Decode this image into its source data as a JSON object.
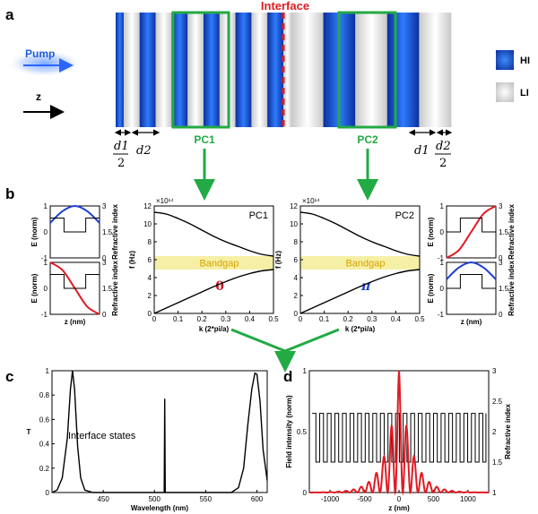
{
  "panels": {
    "a": "a",
    "b": "b",
    "c": "c",
    "d": "d"
  },
  "panel_a": {
    "interface_label": "Interface",
    "pump_label": "Pump",
    "z_label": "z",
    "pc1_label": "PC1",
    "pc2_label": "PC2",
    "legend": [
      {
        "label": "HI",
        "color": "#1a5ad8"
      },
      {
        "label": "LI",
        "color": "#cfcfcf"
      }
    ],
    "dims": {
      "d1_left": "d1",
      "two_left": "2",
      "d2_left": "d2",
      "d1_right": "d1",
      "d2_right": "d2",
      "two_right": "2"
    },
    "colors": {
      "hi": "#1a5ad8",
      "li": "#d9d9d9",
      "interface": "#e01b24",
      "pc_box": "#22aa44",
      "pump": "#2a66ff"
    }
  },
  "chart_data": [
    {
      "id": "b-pc1-band",
      "type": "line",
      "title": "PC1",
      "xlabel": "k (2*pi/a)",
      "ylabel": "f (Hz)",
      "multiplier": "×10¹⁴",
      "xlim": [
        0,
        0.5
      ],
      "ylim": [
        0,
        12
      ],
      "xticks": [
        "0",
        "0.1",
        "0.2",
        "0.3",
        "0.4",
        "0.5"
      ],
      "yticks": [
        "0",
        "2",
        "4",
        "6",
        "8",
        "10",
        "12"
      ],
      "bandgap_label": "Bandgap",
      "bandgap": [
        4.9,
        6.4
      ],
      "phase_label": "0",
      "series": [
        {
          "x": [
            0,
            0.05,
            0.1,
            0.15,
            0.2,
            0.25,
            0.3,
            0.35,
            0.4,
            0.45,
            0.5
          ],
          "y": [
            11.3,
            11.1,
            10.6,
            10.0,
            9.3,
            8.6,
            8.0,
            7.5,
            7.0,
            6.6,
            6.4
          ]
        },
        {
          "x": [
            0,
            0.05,
            0.1,
            0.15,
            0.2,
            0.25,
            0.3,
            0.35,
            0.4,
            0.45,
            0.5
          ],
          "y": [
            0,
            0.6,
            1.2,
            1.8,
            2.4,
            3.0,
            3.55,
            4.05,
            4.45,
            4.75,
            4.9
          ]
        }
      ]
    },
    {
      "id": "b-pc2-band",
      "type": "line",
      "title": "PC2",
      "xlabel": "k (2*pi/a)",
      "ylabel": "f (Hz)",
      "multiplier": "×10¹⁴",
      "xlim": [
        0,
        0.5
      ],
      "ylim": [
        0,
        12
      ],
      "xticks": [
        "0",
        "0.1",
        "0.2",
        "0.3",
        "0.4",
        "0.5"
      ],
      "yticks": [
        "0",
        "2",
        "4",
        "6",
        "8",
        "10",
        "12"
      ],
      "bandgap_label": "Bandgap",
      "bandgap": [
        4.9,
        6.4
      ],
      "phase_label": "π",
      "series": [
        {
          "x": [
            0,
            0.05,
            0.1,
            0.15,
            0.2,
            0.25,
            0.3,
            0.35,
            0.4,
            0.45,
            0.5
          ],
          "y": [
            11.3,
            11.1,
            10.6,
            10.0,
            9.3,
            8.6,
            8.0,
            7.5,
            7.0,
            6.6,
            6.4
          ]
        },
        {
          "x": [
            0,
            0.05,
            0.1,
            0.15,
            0.2,
            0.25,
            0.3,
            0.35,
            0.4,
            0.45,
            0.5
          ],
          "y": [
            0,
            0.6,
            1.2,
            1.8,
            2.4,
            3.0,
            3.55,
            4.05,
            4.45,
            4.75,
            4.9
          ]
        }
      ]
    },
    {
      "id": "b-field-left-top",
      "type": "line",
      "ylabel": "E (norm)",
      "y2label": "Refractive index",
      "ylim": [
        -1,
        1
      ],
      "y2lim": [
        0,
        3
      ],
      "yticks": [
        "-1",
        "0",
        "1"
      ],
      "y2ticks": [
        "0",
        "1.5",
        "3"
      ],
      "series": [
        {
          "color": "#1f3fd0",
          "x": [
            0,
            0.25,
            0.5,
            0.75,
            1
          ],
          "y": [
            0.35,
            0.8,
            1.0,
            0.8,
            0.35
          ]
        },
        {
          "color": "#000000",
          "x": [
            0,
            0.28,
            0.28,
            0.72,
            0.72,
            1
          ],
          "y2": [
            2.3,
            2.3,
            1.5,
            1.5,
            2.3,
            2.3
          ]
        }
      ]
    },
    {
      "id": "b-field-left-bottom",
      "type": "line",
      "ylabel": "E (norm)",
      "y2label": "Refractive index",
      "xlabel": "z (nm)",
      "ylim": [
        -1,
        1
      ],
      "y2lim": [
        0,
        3
      ],
      "yticks": [
        "-1",
        "0",
        "1"
      ],
      "y2ticks": [
        "0",
        "1.5",
        "3"
      ],
      "series": [
        {
          "color": "#e01b24",
          "x": [
            0,
            0.25,
            0.5,
            0.75,
            1
          ],
          "y": [
            1.0,
            0.7,
            0.0,
            -0.7,
            -1.0
          ]
        },
        {
          "color": "#000000",
          "x": [
            0,
            0.28,
            0.28,
            0.72,
            0.72,
            1
          ],
          "y2": [
            2.3,
            2.3,
            1.5,
            1.5,
            2.3,
            2.3
          ]
        }
      ]
    },
    {
      "id": "b-field-right-top",
      "type": "line",
      "ylabel": "E (norm)",
      "y2label": "Refractive index",
      "ylim": [
        -1,
        1
      ],
      "y2lim": [
        0,
        3
      ],
      "yticks": [
        "-1",
        "0",
        "1"
      ],
      "y2ticks": [
        "0",
        "1.5",
        "3"
      ],
      "series": [
        {
          "color": "#e01b24",
          "x": [
            0,
            0.25,
            0.5,
            0.75,
            1
          ],
          "y": [
            -1.0,
            -0.7,
            0.0,
            0.7,
            1.0
          ]
        },
        {
          "color": "#000000",
          "x": [
            0,
            0.28,
            0.28,
            0.72,
            0.72,
            1
          ],
          "y2": [
            1.5,
            1.5,
            2.3,
            2.3,
            1.5,
            1.5
          ]
        }
      ]
    },
    {
      "id": "b-field-right-bottom",
      "type": "line",
      "ylabel": "E (norm)",
      "y2label": "Refractive index",
      "xlabel": "z (nm)",
      "ylim": [
        -1,
        1
      ],
      "y2lim": [
        0,
        3
      ],
      "yticks": [
        "-1",
        "0",
        "1"
      ],
      "y2ticks": [
        "0",
        "1.5",
        "3"
      ],
      "series": [
        {
          "color": "#1f3fd0",
          "x": [
            0,
            0.25,
            0.5,
            0.75,
            1
          ],
          "y": [
            0.35,
            0.8,
            1.0,
            0.8,
            0.35
          ]
        },
        {
          "color": "#000000",
          "x": [
            0,
            0.28,
            0.28,
            0.72,
            0.72,
            1
          ],
          "y2": [
            1.5,
            1.5,
            2.3,
            2.3,
            1.5,
            1.5
          ]
        }
      ]
    },
    {
      "id": "c-transmission",
      "type": "line",
      "xlabel": "Wavelength (nm)",
      "ylabel": "T",
      "annotation": "Interface states",
      "xlim": [
        400,
        610
      ],
      "ylim": [
        0,
        1
      ],
      "xticks": [
        "450",
        "500",
        "550",
        "600"
      ],
      "yticks": [
        "0",
        "0.2",
        "0.4",
        "0.6",
        "0.8",
        "1"
      ],
      "x": [
        400,
        405,
        410,
        415,
        418,
        420,
        422,
        425,
        428,
        432,
        440,
        450,
        500,
        508,
        509.5,
        510,
        510.5,
        512,
        520,
        560,
        575,
        582,
        587,
        591,
        595,
        598,
        600,
        603,
        606,
        610
      ],
      "y": [
        0.0,
        0.02,
        0.12,
        0.45,
        0.85,
        1.0,
        0.85,
        0.38,
        0.12,
        0.02,
        0.0,
        0.0,
        0.0,
        0.0,
        0.0,
        0.77,
        0.0,
        0.0,
        0.0,
        0.0,
        0.0,
        0.04,
        0.2,
        0.55,
        0.85,
        0.98,
        0.97,
        0.75,
        0.35,
        0.1
      ]
    },
    {
      "id": "d-field",
      "type": "line",
      "xlabel": "z (nm)",
      "ylabel": "Field intensity (norm)",
      "y2label": "Refractive index",
      "xlim": [
        -1300,
        1300
      ],
      "ylim": [
        0,
        1
      ],
      "y2lim": [
        1,
        3
      ],
      "xticks": [
        "-1000",
        "-500",
        "0",
        "500",
        "1000"
      ],
      "yticks": [
        "0",
        "0.5",
        "1"
      ],
      "y2ticks": [
        "1",
        "1.5",
        "2",
        "2.5",
        "3"
      ],
      "index_levels": [
        1.5,
        2.3
      ],
      "index_period_nm": 110,
      "field_decay_nm": 180,
      "field_peak": 1.0
    }
  ]
}
